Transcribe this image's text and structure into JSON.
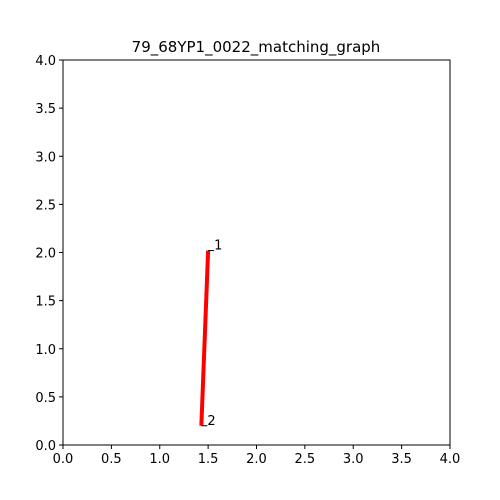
{
  "chart_data": {
    "type": "line",
    "title": "79_68YP1_0022_matching_graph",
    "xlabel": "",
    "ylabel": "",
    "xlim": [
      0.0,
      4.0
    ],
    "ylim": [
      0.0,
      4.0
    ],
    "x_ticks": [
      "0.0",
      "0.5",
      "1.0",
      "1.5",
      "2.0",
      "2.5",
      "3.0",
      "3.5",
      "4.0"
    ],
    "y_ticks": [
      "0.0",
      "0.5",
      "1.0",
      "1.5",
      "2.0",
      "2.5",
      "3.0",
      "3.5",
      "4.0"
    ],
    "grid": false,
    "nodes": [
      {
        "label": "1",
        "x": 1.5,
        "y": 2.02
      },
      {
        "label": "2",
        "x": 1.43,
        "y": 0.2
      }
    ],
    "edges": [
      {
        "from": 0,
        "to": 1,
        "color": "#ff0000"
      }
    ]
  }
}
